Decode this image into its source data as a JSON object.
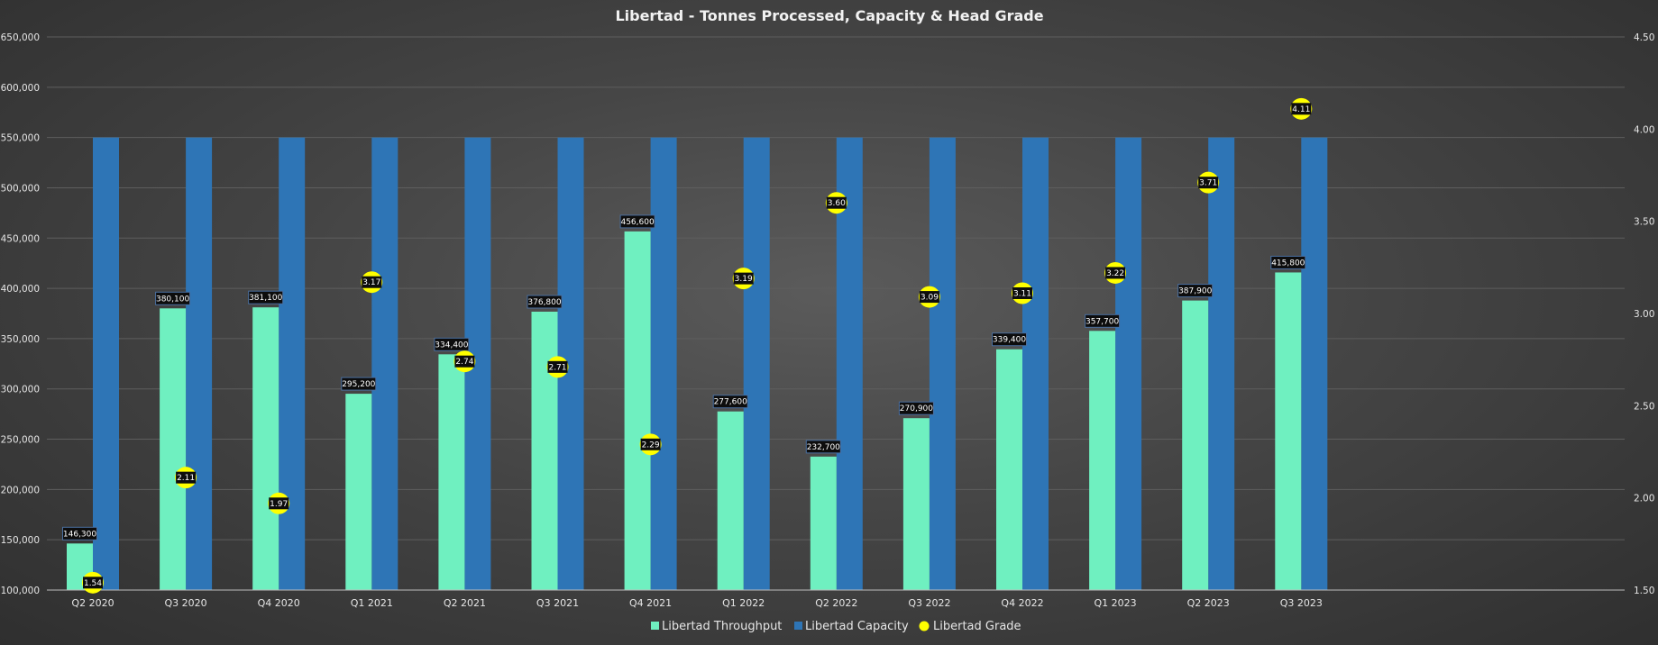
{
  "chart_data": {
    "type": "bar",
    "title": "Libertad - Tonnes Processed, Capacity & Head Grade",
    "categories": [
      "Q2 2020",
      "Q3 2020",
      "Q4 2020",
      "Q1 2021",
      "Q2 2021",
      "Q3 2021",
      "Q4 2021",
      "Q1 2022",
      "Q2 2022",
      "Q3 2022",
      "Q4 2022",
      "Q1 2023",
      "Q2 2023",
      "Q3 2023"
    ],
    "series": [
      {
        "name": "Libertad Throughput",
        "type": "bar",
        "axis": "left",
        "color": "#6ff0c0",
        "values": [
          146300,
          380100,
          381100,
          295200,
          334400,
          376800,
          456600,
          277600,
          232700,
          270900,
          339400,
          357700,
          387900,
          415800
        ],
        "labels": [
          "146,300",
          "380,100",
          "381,100",
          "295,200",
          "334,400",
          "376,800",
          "456,600",
          "277,600",
          "232,700",
          "270,900",
          "339,400",
          "357,700",
          "387,900",
          "415,800"
        ]
      },
      {
        "name": "Libertad Capacity",
        "type": "bar",
        "axis": "left",
        "color": "#2e75b6",
        "values": [
          550000,
          550000,
          550000,
          550000,
          550000,
          550000,
          550000,
          550000,
          550000,
          550000,
          550000,
          550000,
          550000,
          550000
        ]
      },
      {
        "name": "Libertad Grade",
        "type": "scatter",
        "axis": "right",
        "color": "#ffff00",
        "values": [
          1.54,
          2.11,
          1.97,
          3.17,
          2.74,
          2.71,
          2.29,
          3.19,
          3.6,
          3.09,
          3.11,
          3.22,
          3.71,
          4.11
        ],
        "labels": [
          "1.54",
          "2.11",
          "1.97",
          "3.17",
          "2.74",
          "2.71",
          "2.29",
          "3.19",
          "3.60",
          "3.09",
          "3.11",
          "3.22",
          "3.71",
          "4.11"
        ]
      }
    ],
    "y_left": {
      "min": 100000,
      "max": 650000,
      "ticks": [
        100000,
        150000,
        200000,
        250000,
        300000,
        350000,
        400000,
        450000,
        500000,
        550000,
        600000,
        650000
      ],
      "tick_labels": [
        "100,000",
        "150,000",
        "200,000",
        "250,000",
        "300,000",
        "350,000",
        "400,000",
        "450,000",
        "500,000",
        "550,000",
        "600,000",
        "650,000"
      ]
    },
    "y_right": {
      "min": 1.5,
      "max": 4.5,
      "ticks": [
        1.5,
        2.0,
        2.5,
        3.0,
        3.5,
        4.0,
        4.5
      ],
      "tick_labels": [
        "1.50",
        "2.00",
        "2.50",
        "3.00",
        "3.50",
        "4.00",
        "4.50"
      ]
    },
    "grid": true,
    "legend": "bottom"
  }
}
